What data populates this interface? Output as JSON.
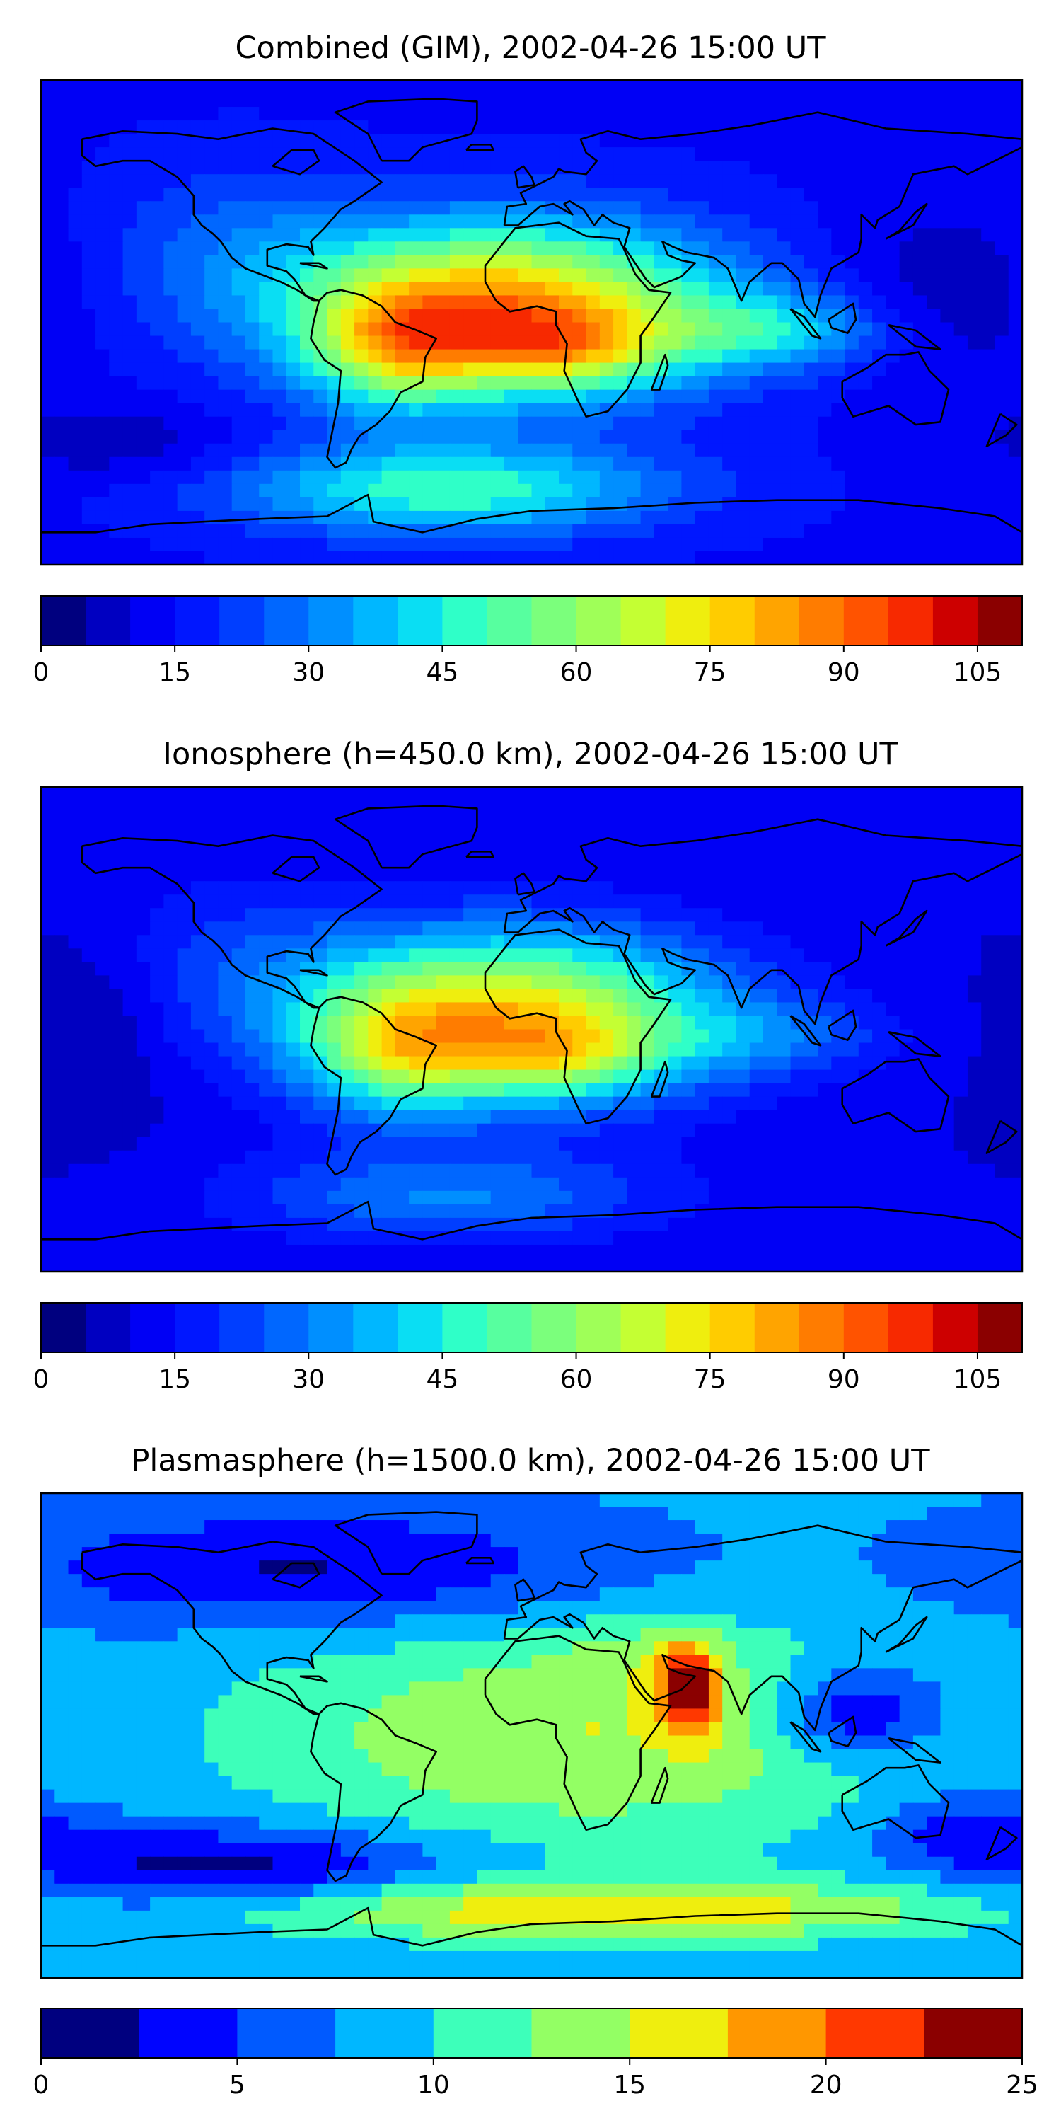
{
  "colors": {
    "jet": [
      "#00007f",
      "#0000c8",
      "#0000ff",
      "#0020ff",
      "#0050ff",
      "#007cff",
      "#00a8ff",
      "#00d4ff",
      "#29ffce",
      "#55ffa1",
      "#7dff7a",
      "#a5ff52",
      "#ceff29",
      "#ffe500",
      "#ffb900",
      "#ff8d00",
      "#ff6000",
      "#ff3300",
      "#d40000",
      "#8b0000"
    ]
  },
  "chart_data": [
    {
      "type": "heatmap",
      "title": "Combined (GIM), 2002-04-26 15:00 UT",
      "colorbar": {
        "min": 0,
        "max": 110,
        "levels": 22,
        "ticks": [
          "0",
          "15",
          "30",
          "45",
          "60",
          "75",
          "90",
          "105"
        ],
        "tick_values": [
          0,
          15,
          30,
          45,
          60,
          75,
          90,
          105
        ]
      },
      "field": {
        "base": 14,
        "blobs": [
          {
            "lon": -10,
            "lat": 5,
            "amp": 70,
            "slon": 55,
            "slat": 22
          },
          {
            "lon": -50,
            "lat": -10,
            "amp": 30,
            "slon": 22,
            "slat": 16
          },
          {
            "lon": 10,
            "lat": -10,
            "amp": 25,
            "slon": 25,
            "slat": 10
          },
          {
            "lon": 90,
            "lat": -3,
            "amp": 22,
            "slon": 30,
            "slat": 10
          },
          {
            "lon": -110,
            "lat": 30,
            "amp": 10,
            "slon": 35,
            "slat": 22
          },
          {
            "lon": -30,
            "lat": -62,
            "amp": 35,
            "slon": 55,
            "slat": 12
          },
          {
            "lon": -150,
            "lat": -45,
            "amp": -8,
            "slon": 30,
            "slat": 10
          },
          {
            "lon": 150,
            "lat": 10,
            "amp": -8,
            "slon": 30,
            "slat": 25
          }
        ]
      }
    },
    {
      "type": "heatmap",
      "title": "Ionosphere  (h=450.0 km), 2002-04-26 15:00 UT",
      "colorbar": {
        "min": 0,
        "max": 110,
        "levels": 22,
        "ticks": [
          "0",
          "15",
          "30",
          "45",
          "60",
          "75",
          "90",
          "105"
        ],
        "tick_values": [
          0,
          15,
          30,
          45,
          60,
          75,
          90,
          105
        ]
      },
      "field": {
        "base": 10,
        "blobs": [
          {
            "lon": -10,
            "lat": 5,
            "amp": 65,
            "slon": 55,
            "slat": 22
          },
          {
            "lon": -50,
            "lat": -10,
            "amp": 25,
            "slon": 22,
            "slat": 16
          },
          {
            "lon": 10,
            "lat": -10,
            "amp": 20,
            "slon": 25,
            "slat": 10
          },
          {
            "lon": 90,
            "lat": -3,
            "amp": 12,
            "slon": 30,
            "slat": 10
          },
          {
            "lon": -110,
            "lat": 30,
            "amp": 8,
            "slon": 35,
            "slat": 22
          },
          {
            "lon": -30,
            "lat": -62,
            "amp": 20,
            "slon": 55,
            "slat": 12
          },
          {
            "lon": -160,
            "lat": 0,
            "amp": -6,
            "slon": 20,
            "slat": 25
          }
        ]
      }
    },
    {
      "type": "heatmap",
      "title": "Plasmasphere (h=1500.0 km), 2002-04-26 15:00 UT",
      "colorbar": {
        "min": 0,
        "max": 25,
        "levels": 10,
        "ticks": [
          "0",
          "5",
          "10",
          "15",
          "20",
          "25"
        ],
        "tick_values": [
          0,
          5,
          10,
          15,
          20,
          25
        ]
      },
      "field": {
        "base": 8,
        "blobs": [
          {
            "lon": 20,
            "lat": 0,
            "amp": 7,
            "slon": 90,
            "slat": 30
          },
          {
            "lon": 58,
            "lat": 18,
            "amp": 12,
            "slon": 8,
            "slat": 12
          },
          {
            "lon": 30,
            "lat": -65,
            "amp": 9,
            "slon": 90,
            "slat": 8
          },
          {
            "lon": 120,
            "lat": 8,
            "amp": -8,
            "slon": 22,
            "slat": 12
          },
          {
            "lon": -80,
            "lat": 62,
            "amp": -6,
            "slon": 80,
            "slat": 15
          },
          {
            "lon": -110,
            "lat": -48,
            "amp": -7,
            "slon": 55,
            "slat": 10
          },
          {
            "lon": 160,
            "lat": -35,
            "amp": -5,
            "slon": 25,
            "slat": 10
          },
          {
            "lon": 40,
            "lat": 30,
            "amp": 2,
            "slon": 20,
            "slat": 10
          }
        ]
      }
    }
  ],
  "coastlines": {
    "north_america": [
      [
        -165,
        68
      ],
      [
        -150,
        71
      ],
      [
        -130,
        70
      ],
      [
        -115,
        68
      ],
      [
        -95,
        72
      ],
      [
        -80,
        70
      ],
      [
        -65,
        60
      ],
      [
        -55,
        52
      ],
      [
        -65,
        45
      ],
      [
        -70,
        42
      ],
      [
        -76,
        35
      ],
      [
        -81,
        30
      ],
      [
        -80,
        25
      ],
      [
        -82,
        28
      ],
      [
        -90,
        29
      ],
      [
        -97,
        27
      ],
      [
        -97,
        21
      ],
      [
        -90,
        19
      ],
      [
        -87,
        16
      ],
      [
        -83,
        10
      ],
      [
        -78,
        8
      ],
      [
        -80,
        8
      ],
      [
        -86,
        12
      ],
      [
        -92,
        15
      ],
      [
        -105,
        20
      ],
      [
        -110,
        24
      ],
      [
        -114,
        30
      ],
      [
        -117,
        33
      ],
      [
        -121,
        36
      ],
      [
        -124,
        40
      ],
      [
        -124,
        47
      ],
      [
        -130,
        54
      ],
      [
        -140,
        60
      ],
      [
        -150,
        60
      ],
      [
        -160,
        58
      ],
      [
        -165,
        62
      ],
      [
        -165,
        68
      ]
    ],
    "greenland": [
      [
        -55,
        60
      ],
      [
        -45,
        60
      ],
      [
        -40,
        65
      ],
      [
        -22,
        70
      ],
      [
        -20,
        75
      ],
      [
        -20,
        82
      ],
      [
        -35,
        83
      ],
      [
        -60,
        82
      ],
      [
        -72,
        78
      ],
      [
        -60,
        70
      ],
      [
        -55,
        60
      ]
    ],
    "south_america": [
      [
        -78,
        8
      ],
      [
        -75,
        11
      ],
      [
        -70,
        12
      ],
      [
        -62,
        10
      ],
      [
        -55,
        6
      ],
      [
        -50,
        0
      ],
      [
        -42,
        -3
      ],
      [
        -35,
        -6
      ],
      [
        -39,
        -13
      ],
      [
        -40,
        -22
      ],
      [
        -48,
        -26
      ],
      [
        -52,
        -33
      ],
      [
        -57,
        -38
      ],
      [
        -63,
        -42
      ],
      [
        -66,
        -47
      ],
      [
        -68,
        -52
      ],
      [
        -72,
        -54
      ],
      [
        -75,
        -50
      ],
      [
        -73,
        -40
      ],
      [
        -71,
        -30
      ],
      [
        -70,
        -18
      ],
      [
        -76,
        -14
      ],
      [
        -81,
        -6
      ],
      [
        -80,
        0
      ],
      [
        -78,
        8
      ]
    ],
    "eurasia": [
      [
        -10,
        36
      ],
      [
        -9,
        43
      ],
      [
        -2,
        44
      ],
      [
        -4,
        48
      ],
      [
        2,
        51
      ],
      [
        8,
        54
      ],
      [
        10,
        57
      ],
      [
        12,
        56
      ],
      [
        20,
        55
      ],
      [
        24,
        60
      ],
      [
        20,
        63
      ],
      [
        18,
        68
      ],
      [
        28,
        71
      ],
      [
        40,
        68
      ],
      [
        60,
        70
      ],
      [
        80,
        73
      ],
      [
        105,
        78
      ],
      [
        130,
        72
      ],
      [
        160,
        70
      ],
      [
        180,
        68
      ],
      [
        180,
        65
      ],
      [
        170,
        60
      ],
      [
        160,
        55
      ],
      [
        155,
        58
      ],
      [
        140,
        55
      ],
      [
        135,
        43
      ],
      [
        127,
        38
      ],
      [
        126,
        35
      ],
      [
        121,
        40
      ],
      [
        121,
        31
      ],
      [
        120,
        26
      ],
      [
        110,
        20
      ],
      [
        106,
        10
      ],
      [
        104,
        2
      ],
      [
        100,
        7
      ],
      [
        98,
        16
      ],
      [
        92,
        22
      ],
      [
        88,
        22
      ],
      [
        80,
        15
      ],
      [
        77,
        8
      ],
      [
        72,
        20
      ],
      [
        67,
        24
      ],
      [
        57,
        26
      ],
      [
        52,
        28
      ],
      [
        48,
        30
      ],
      [
        50,
        25
      ],
      [
        55,
        23
      ],
      [
        60,
        22
      ],
      [
        55,
        17
      ],
      [
        45,
        13
      ],
      [
        42,
        16
      ],
      [
        38,
        22
      ],
      [
        34,
        28
      ],
      [
        36,
        35
      ],
      [
        30,
        37
      ],
      [
        26,
        40
      ],
      [
        23,
        36
      ],
      [
        19,
        42
      ],
      [
        14,
        45
      ],
      [
        12,
        44
      ],
      [
        15,
        40
      ],
      [
        8,
        44
      ],
      [
        3,
        43
      ],
      [
        -5,
        36
      ],
      [
        -10,
        36
      ]
    ],
    "africa": [
      [
        -17,
        15
      ],
      [
        -17,
        21
      ],
      [
        -10,
        30
      ],
      [
        -6,
        35
      ],
      [
        10,
        37
      ],
      [
        20,
        32
      ],
      [
        32,
        31
      ],
      [
        34,
        27
      ],
      [
        38,
        18
      ],
      [
        43,
        12
      ],
      [
        51,
        11
      ],
      [
        45,
        2
      ],
      [
        40,
        -5
      ],
      [
        40,
        -15
      ],
      [
        35,
        -25
      ],
      [
        28,
        -33
      ],
      [
        20,
        -35
      ],
      [
        17,
        -29
      ],
      [
        12,
        -18
      ],
      [
        13,
        -8
      ],
      [
        9,
        -1
      ],
      [
        9,
        4
      ],
      [
        2,
        6
      ],
      [
        -8,
        4
      ],
      [
        -13,
        8
      ],
      [
        -17,
        15
      ]
    ],
    "australia": [
      [
        114,
        -22
      ],
      [
        123,
        -17
      ],
      [
        130,
        -12
      ],
      [
        137,
        -12
      ],
      [
        142,
        -11
      ],
      [
        146,
        -18
      ],
      [
        153,
        -25
      ],
      [
        150,
        -37
      ],
      [
        141,
        -38
      ],
      [
        131,
        -31
      ],
      [
        118,
        -35
      ],
      [
        114,
        -28
      ],
      [
        114,
        -22
      ]
    ],
    "antarctica": [
      [
        -180,
        -78
      ],
      [
        -160,
        -78
      ],
      [
        -140,
        -75
      ],
      [
        -100,
        -73
      ],
      [
        -75,
        -72
      ],
      [
        -60,
        -64
      ],
      [
        -58,
        -74
      ],
      [
        -40,
        -78
      ],
      [
        -20,
        -73
      ],
      [
        0,
        -70
      ],
      [
        30,
        -69
      ],
      [
        60,
        -67
      ],
      [
        90,
        -66
      ],
      [
        120,
        -66
      ],
      [
        150,
        -69
      ],
      [
        170,
        -72
      ],
      [
        180,
        -78
      ]
    ],
    "madagascar": [
      [
        44,
        -25
      ],
      [
        49,
        -12
      ],
      [
        50,
        -16
      ],
      [
        47,
        -25
      ],
      [
        44,
        -25
      ]
    ],
    "borneo": [
      [
        109,
        1
      ],
      [
        118,
        7
      ],
      [
        119,
        1
      ],
      [
        116,
        -4
      ],
      [
        110,
        -2
      ],
      [
        109,
        1
      ]
    ],
    "sumatra": [
      [
        95,
        5
      ],
      [
        100,
        2
      ],
      [
        106,
        -6
      ],
      [
        103,
        -5
      ],
      [
        95,
        5
      ]
    ],
    "new_guinea": [
      [
        131,
        -1
      ],
      [
        141,
        -3
      ],
      [
        150,
        -10
      ],
      [
        141,
        -9
      ],
      [
        131,
        -1
      ]
    ],
    "japan": [
      [
        130,
        31
      ],
      [
        135,
        34
      ],
      [
        141,
        41
      ],
      [
        145,
        44
      ],
      [
        140,
        36
      ],
      [
        130,
        31
      ]
    ],
    "uk": [
      [
        -5,
        50
      ],
      [
        1,
        51
      ],
      [
        0,
        54
      ],
      [
        -3,
        58
      ],
      [
        -6,
        56
      ],
      [
        -5,
        50
      ]
    ],
    "new_zealand": [
      [
        172,
        -34
      ],
      [
        178,
        -38
      ],
      [
        174,
        -42
      ],
      [
        167,
        -46
      ],
      [
        172,
        -34
      ]
    ],
    "iceland": [
      [
        -24,
        64
      ],
      [
        -14,
        64
      ],
      [
        -15,
        66
      ],
      [
        -22,
        66
      ],
      [
        -24,
        64
      ]
    ],
    "cuba": [
      [
        -85,
        22
      ],
      [
        -75,
        20
      ],
      [
        -78,
        22
      ],
      [
        -85,
        22
      ]
    ],
    "hudson_bay": [
      [
        -95,
        58
      ],
      [
        -85,
        55
      ],
      [
        -78,
        60
      ],
      [
        -80,
        64
      ],
      [
        -88,
        64
      ],
      [
        -95,
        58
      ]
    ]
  }
}
